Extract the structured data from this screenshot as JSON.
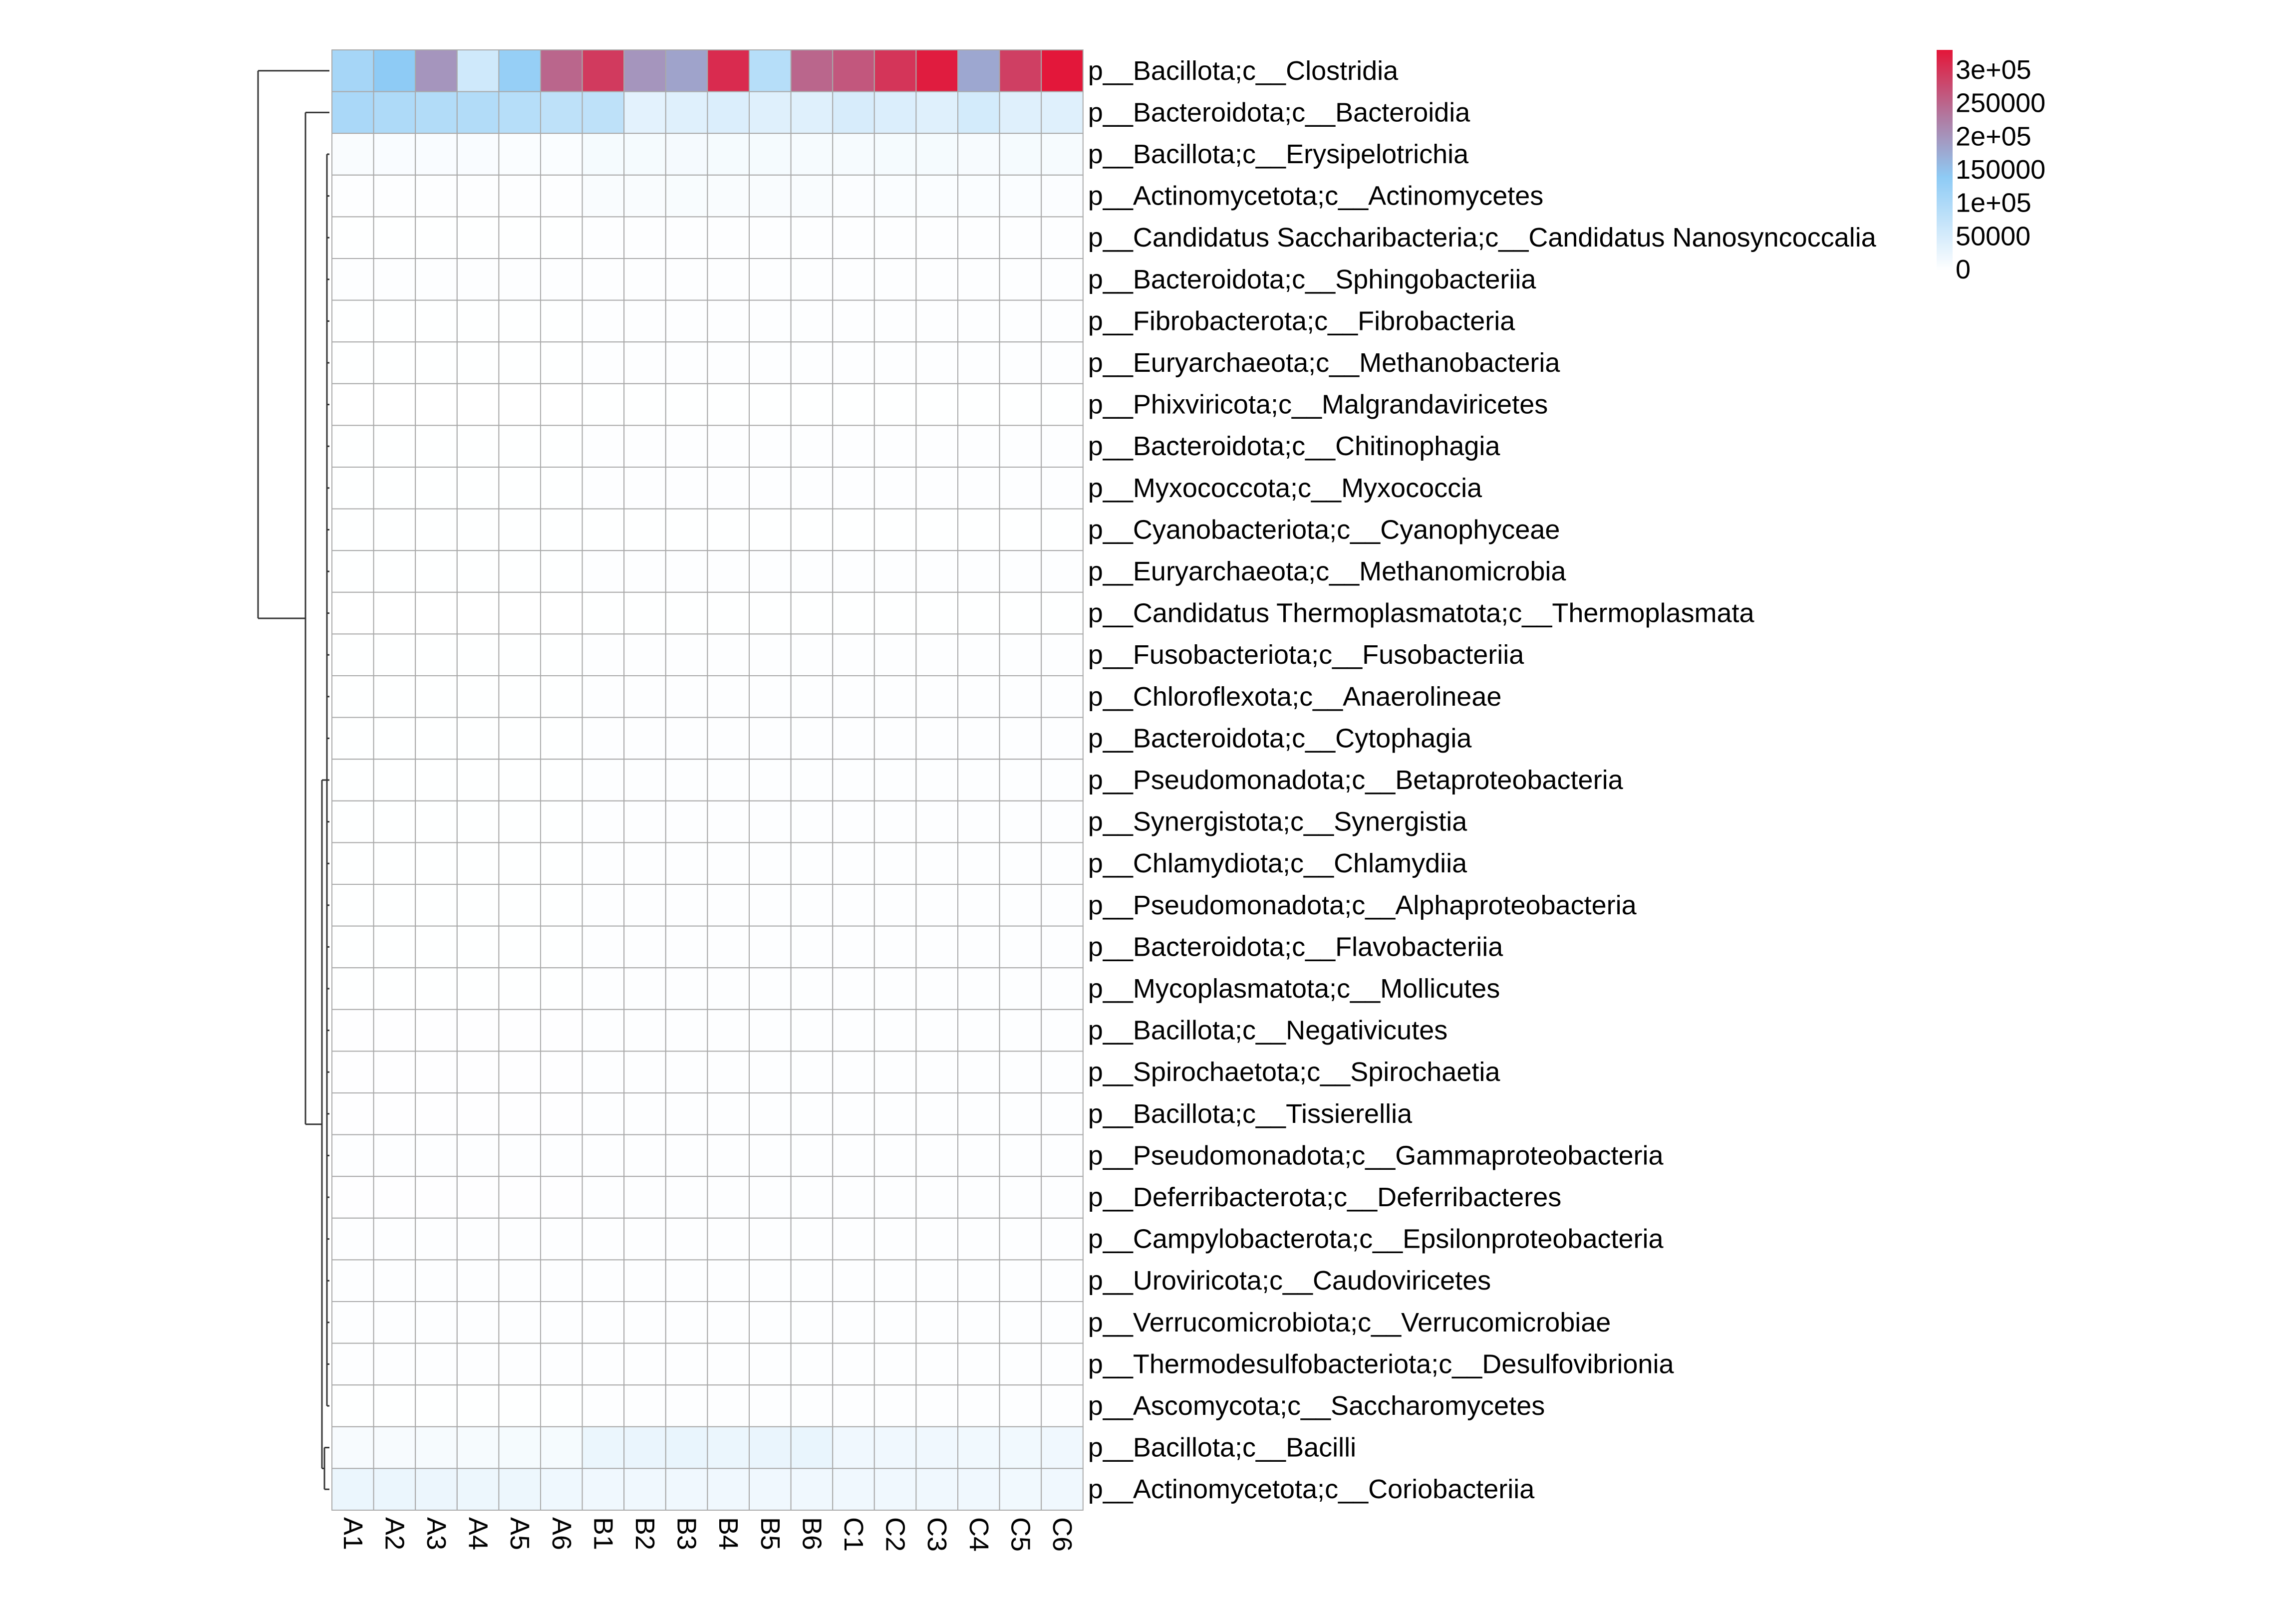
{
  "chart_data": {
    "type": "heatmap",
    "title": "",
    "xlabel": "",
    "ylabel": "",
    "columns": [
      "A1",
      "A2",
      "A3",
      "A4",
      "A5",
      "A6",
      "B1",
      "B2",
      "B3",
      "B4",
      "B5",
      "B6",
      "C1",
      "C2",
      "C3",
      "C4",
      "C5",
      "C6"
    ],
    "rows": [
      "p__Bacillota;c__Clostridia",
      "p__Bacteroidota;c__Bacteroidia",
      "p__Bacillota;c__Erysipelotrichia",
      "p__Actinomycetota;c__Actinomycetes",
      "p__Candidatus Saccharibacteria;c__Candidatus Nanosyncoccalia",
      "p__Bacteroidota;c__Sphingobacteriia",
      "p__Fibrobacterota;c__Fibrobacteria",
      "p__Euryarchaeota;c__Methanobacteria",
      "p__Phixviricota;c__Malgrandaviricetes",
      "p__Bacteroidota;c__Chitinophagia",
      "p__Myxococcota;c__Myxococcia",
      "p__Cyanobacteriota;c__Cyanophyceae",
      "p__Euryarchaeota;c__Methanomicrobia",
      "p__Candidatus Thermoplasmatota;c__Thermoplasmata",
      "p__Fusobacteriota;c__Fusobacteriia",
      "p__Chloroflexota;c__Anaerolineae",
      "p__Bacteroidota;c__Cytophagia",
      "p__Pseudomonadota;c__Betaproteobacteria",
      "p__Synergistota;c__Synergistia",
      "p__Chlamydiota;c__Chlamydiia",
      "p__Pseudomonadota;c__Alphaproteobacteria",
      "p__Bacteroidota;c__Flavobacteriia",
      "p__Mycoplasmatota;c__Mollicutes",
      "p__Bacillota;c__Negativicutes",
      "p__Spirochaetota;c__Spirochaetia",
      "p__Bacillota;c__Tissierellia",
      "p__Pseudomonadota;c__Gammaproteobacteria",
      "p__Deferribacterota;c__Deferribacteres",
      "p__Campylobacterota;c__Epsilonproteobacteria",
      "p__Uroviricota;c__Caudoviricetes",
      "p__Verrucomicrobiota;c__Verrucomicrobiae",
      "p__Thermodesulfobacteriota;c__Desulfovibrionia",
      "p__Ascomycota;c__Saccharomycetes",
      "p__Bacillota;c__Bacilli",
      "p__Actinomycetota;c__Coriobacteriia"
    ],
    "values": [
      [
        110000,
        140000,
        200000,
        60000,
        130000,
        250000,
        295000,
        200000,
        185000,
        310000,
        90000,
        250000,
        265000,
        300000,
        325000,
        180000,
        290000,
        330000
      ],
      [
        105000,
        100000,
        95000,
        95000,
        90000,
        80000,
        80000,
        35000,
        40000,
        45000,
        40000,
        40000,
        50000,
        45000,
        40000,
        55000,
        40000,
        40000
      ],
      [
        8000,
        7000,
        7000,
        7000,
        6000,
        6000,
        12000,
        12000,
        13000,
        12000,
        12000,
        11000,
        11000,
        12000,
        12000,
        10000,
        12000,
        11000
      ],
      [
        3000,
        3000,
        3000,
        3000,
        3000,
        3000,
        8000,
        8000,
        9000,
        8000,
        8000,
        8000,
        5000,
        6000,
        6000,
        6000,
        6000,
        5000
      ],
      [
        1000,
        1000,
        1000,
        1000,
        1000,
        1000,
        3000,
        3000,
        3000,
        3000,
        3000,
        3000,
        2000,
        2000,
        2000,
        2000,
        2000,
        2000
      ],
      [
        2000,
        2000,
        2000,
        2000,
        2000,
        2000,
        3000,
        3000,
        3000,
        3000,
        3000,
        3000,
        3000,
        3000,
        3000,
        3000,
        3000,
        3000
      ],
      [
        1000,
        1000,
        1000,
        1000,
        1000,
        1000,
        2000,
        2000,
        2000,
        2000,
        2000,
        2000,
        2000,
        2000,
        2000,
        2000,
        2000,
        2000
      ],
      [
        1000,
        1000,
        1000,
        1000,
        1000,
        1000,
        2000,
        2000,
        2000,
        2000,
        2000,
        2000,
        2000,
        2000,
        2000,
        2000,
        2000,
        2000
      ],
      [
        500,
        500,
        500,
        500,
        500,
        500,
        1000,
        1000,
        1000,
        1000,
        1000,
        1000,
        1000,
        1000,
        1000,
        1000,
        1000,
        1000
      ],
      [
        1000,
        1000,
        1000,
        1000,
        1000,
        1000,
        2000,
        2000,
        2000,
        2000,
        2000,
        2000,
        2000,
        2000,
        2000,
        2000,
        2000,
        2000
      ],
      [
        1000,
        1000,
        1000,
        1000,
        1000,
        1000,
        2000,
        2000,
        2000,
        2000,
        2000,
        2000,
        2000,
        2000,
        2000,
        2000,
        2000,
        2000
      ],
      [
        1000,
        1000,
        1000,
        1000,
        1000,
        1000,
        1000,
        1000,
        1000,
        1000,
        1000,
        1000,
        1000,
        1000,
        1000,
        1000,
        1000,
        1000
      ],
      [
        1000,
        1000,
        1000,
        1000,
        1000,
        1000,
        2000,
        2000,
        2000,
        2000,
        2000,
        2000,
        2000,
        2000,
        2000,
        2000,
        2000,
        2000
      ],
      [
        500,
        500,
        500,
        500,
        500,
        500,
        1000,
        1000,
        1000,
        1000,
        1000,
        1000,
        1000,
        1000,
        1000,
        1000,
        1000,
        1000
      ],
      [
        1000,
        1000,
        1000,
        1000,
        1000,
        1000,
        2000,
        2000,
        2000,
        2000,
        2000,
        2000,
        2000,
        2000,
        2000,
        2000,
        2000,
        2000
      ],
      [
        1000,
        1000,
        1000,
        1000,
        1000,
        1000,
        2000,
        2000,
        2000,
        2000,
        2000,
        2000,
        2000,
        2000,
        2000,
        2000,
        2000,
        2000
      ],
      [
        1000,
        1000,
        1000,
        1000,
        1000,
        1000,
        2000,
        2000,
        2000,
        2000,
        2000,
        2000,
        2000,
        2000,
        2000,
        2000,
        2000,
        2000
      ],
      [
        1000,
        1000,
        1000,
        1000,
        1000,
        1000,
        2000,
        2000,
        2000,
        2000,
        2000,
        2000,
        2000,
        2000,
        2000,
        2000,
        2000,
        2000
      ],
      [
        1000,
        1000,
        1000,
        1000,
        1000,
        1000,
        2000,
        2000,
        2000,
        2000,
        2000,
        2000,
        2000,
        2000,
        2000,
        2000,
        2000,
        2000
      ],
      [
        1000,
        1000,
        1000,
        1000,
        1000,
        1000,
        2000,
        2000,
        2000,
        2000,
        2000,
        2000,
        2000,
        2000,
        2000,
        2000,
        2000,
        2000
      ],
      [
        1000,
        1000,
        1000,
        1000,
        1000,
        1000,
        2000,
        2000,
        2000,
        2000,
        2000,
        2000,
        2000,
        2000,
        2000,
        2000,
        2000,
        2000
      ],
      [
        1000,
        1000,
        1000,
        1000,
        1000,
        1000,
        2000,
        2000,
        2000,
        2000,
        2000,
        2000,
        2000,
        2000,
        2000,
        2000,
        2000,
        2000
      ],
      [
        1000,
        1000,
        1000,
        1000,
        1000,
        1000,
        2000,
        2000,
        2000,
        2000,
        2000,
        2000,
        2000,
        2000,
        2000,
        2000,
        2000,
        2000
      ],
      [
        1500,
        1500,
        1500,
        1500,
        1500,
        1500,
        2500,
        2500,
        2500,
        2500,
        2500,
        2500,
        2500,
        2500,
        2500,
        2500,
        2500,
        2500
      ],
      [
        1500,
        1500,
        1500,
        1500,
        1500,
        1500,
        2500,
        2500,
        2500,
        2500,
        2500,
        2500,
        2500,
        2500,
        2500,
        2500,
        2500,
        2500
      ],
      [
        1500,
        1500,
        1500,
        1500,
        1500,
        1500,
        2500,
        2500,
        2500,
        2500,
        2500,
        2500,
        2500,
        2500,
        2500,
        2500,
        2500,
        2500
      ],
      [
        2000,
        2000,
        2000,
        2000,
        2000,
        2000,
        3000,
        3000,
        3000,
        3000,
        3000,
        3000,
        3000,
        3000,
        3000,
        3000,
        3000,
        3000
      ],
      [
        1500,
        1500,
        1500,
        1500,
        1500,
        1500,
        2500,
        2500,
        2500,
        2500,
        2500,
        2500,
        2500,
        2500,
        2500,
        2500,
        2500,
        2500
      ],
      [
        2000,
        2000,
        2000,
        2000,
        2000,
        2000,
        3000,
        3000,
        3000,
        3000,
        3000,
        3000,
        3000,
        3000,
        3000,
        3000,
        3000,
        3000
      ],
      [
        2000,
        2000,
        2000,
        2000,
        2000,
        2000,
        3000,
        3000,
        3000,
        3000,
        3000,
        3000,
        3000,
        3000,
        3000,
        3000,
        3000,
        3000
      ],
      [
        2000,
        2000,
        2000,
        2000,
        2000,
        2000,
        3000,
        3000,
        3000,
        3000,
        3000,
        3000,
        3000,
        3000,
        3000,
        3000,
        3000,
        3000
      ],
      [
        2000,
        2000,
        2000,
        2000,
        2000,
        2000,
        3000,
        3000,
        3000,
        3000,
        3000,
        3000,
        3000,
        3000,
        3000,
        3000,
        3000,
        3000
      ],
      [
        1000,
        1000,
        1000,
        1000,
        1000,
        1000,
        2000,
        2000,
        2000,
        2000,
        2000,
        2000,
        2000,
        2000,
        2000,
        2000,
        2000,
        2000
      ],
      [
        10000,
        10000,
        11000,
        11000,
        12000,
        12000,
        25000,
        26000,
        27000,
        25000,
        26000,
        27000,
        18000,
        18000,
        18000,
        17000,
        17000,
        18000
      ],
      [
        25000,
        25000,
        23000,
        22000,
        22000,
        20000,
        19000,
        18000,
        18000,
        19000,
        18000,
        18000,
        18000,
        18000,
        18000,
        18000,
        17000,
        19000
      ]
    ],
    "value_range": [
      0,
      330000
    ],
    "color_scale": {
      "stops": [
        {
          "value": 0,
          "color": "#ffffff"
        },
        {
          "value": 140000,
          "color": "#8ecbf5"
        },
        {
          "value": 230000,
          "color": "#b07aa1"
        },
        {
          "value": 330000,
          "color": "#e3173a"
        }
      ]
    },
    "legend": {
      "position": "top-right",
      "ticks": [
        {
          "value": 0,
          "label": "0"
        },
        {
          "value": 50000,
          "label": "50000"
        },
        {
          "value": 100000,
          "label": "1e+05"
        },
        {
          "value": 150000,
          "label": "150000"
        },
        {
          "value": 200000,
          "label": "2e+05"
        },
        {
          "value": 250000,
          "label": "250000"
        },
        {
          "value": 300000,
          "label": "3e+05"
        }
      ]
    },
    "row_dendrogram": true,
    "grid": true,
    "grid_color": "#a9a9a9"
  }
}
